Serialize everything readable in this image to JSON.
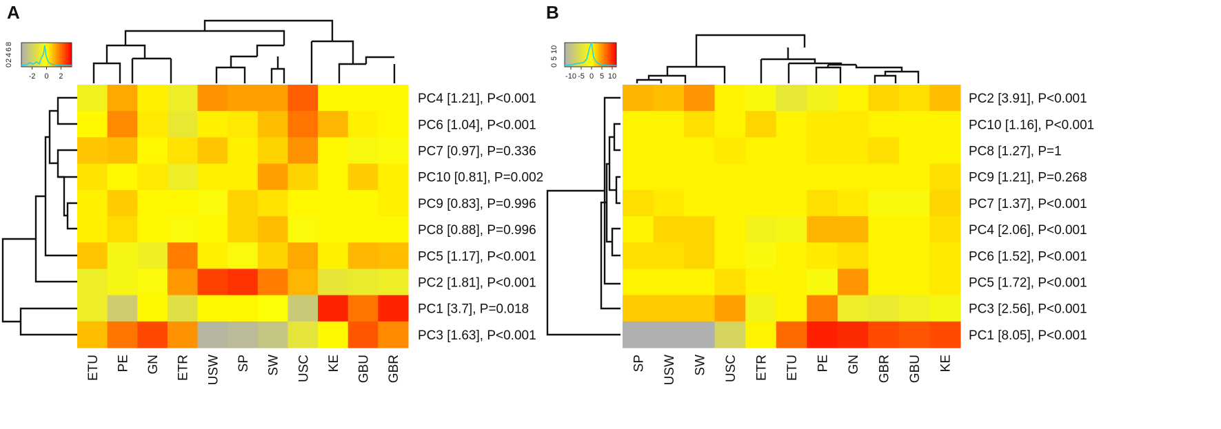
{
  "chart_data": [
    {
      "type": "heatmap",
      "panel": "A",
      "columns": [
        "ETU",
        "PE",
        "GN",
        "ETR",
        "USW",
        "SP",
        "SW",
        "USC",
        "KE",
        "GBU",
        "GBR"
      ],
      "rows": [
        "PC4 [1.21], P<0.001",
        "PC6 [1.04], P<0.001",
        "PC7 [0.97], P=0.336",
        "PC10 [0.81], P=0.002",
        "PC9 [0.83], P=0.996",
        "PC8 [0.88], P=0.996",
        "PC5 [1.17], P<0.001",
        "PC2 [1.81], P<0.001",
        "PC1 [3.7], P=0.018",
        "PC3 [1.63], P<0.001"
      ],
      "values": [
        [
          -0.6,
          1.2,
          0.2,
          -0.8,
          1.5,
          1.3,
          1.3,
          2.2,
          0.1,
          0.1,
          0.1
        ],
        [
          0.1,
          1.6,
          0.3,
          -1.0,
          0.2,
          0.3,
          0.9,
          1.9,
          1.0,
          0.2,
          0.1
        ],
        [
          0.8,
          0.9,
          0.1,
          0.4,
          0.8,
          0.2,
          0.6,
          1.5,
          0.1,
          -0.3,
          -0.2
        ],
        [
          0.4,
          0.1,
          0.3,
          -0.8,
          0.2,
          0.2,
          1.3,
          0.6,
          0.1,
          0.7,
          0.2
        ],
        [
          0.2,
          0.7,
          0.1,
          0.1,
          -0.2,
          0.6,
          0.4,
          0.1,
          0.1,
          0.1,
          0.2
        ],
        [
          0.2,
          0.5,
          0.1,
          -0.2,
          0.1,
          0.6,
          0.9,
          -0.2,
          0.1,
          0.1,
          0.1
        ],
        [
          0.8,
          -0.4,
          -0.7,
          1.8,
          0.2,
          -0.2,
          0.6,
          1.2,
          0.2,
          1.0,
          0.9
        ],
        [
          -0.8,
          -0.4,
          -0.2,
          1.4,
          2.6,
          2.8,
          1.8,
          1.0,
          -1.1,
          -0.9,
          -0.8
        ],
        [
          -0.8,
          -2.2,
          0.1,
          -1.4,
          0.1,
          0.1,
          -0.1,
          -2.4,
          3.0,
          1.9,
          3.0
        ],
        [
          0.9,
          1.9,
          2.5,
          1.5,
          -3.2,
          -3.0,
          -2.6,
          -1.2,
          0.1,
          2.3,
          1.6
        ]
      ],
      "color_key": {
        "min": -3.5,
        "max": 3.5,
        "ticks": [
          -2,
          0,
          2
        ],
        "hist_ticks": [
          "0",
          "2",
          "4",
          "6",
          "8"
        ]
      },
      "row_order_note": "rows top to bottom as displayed",
      "colors": {
        "low": "#b0b0b0",
        "mid": "#ffff00",
        "high": "#ff0000"
      }
    },
    {
      "type": "heatmap",
      "panel": "B",
      "columns": [
        "SP",
        "USW",
        "SW",
        "USC",
        "ETR",
        "ETU",
        "PE",
        "GN",
        "GBR",
        "GBU",
        "KE"
      ],
      "rows": [
        "PC2 [3.91], P<0.001",
        "PC10 [1.16], P<0.001",
        "PC8 [1.27], P=1",
        "PC9 [1.21], P=0.268",
        "PC7 [1.37], P<0.001",
        "PC4 [2.06], P<0.001",
        "PC6 [1.52], P<0.001",
        "PC5 [1.72], P<0.001",
        "PC3 [2.56], P<0.001",
        "PC1 [8.05], P<0.001"
      ],
      "values": [
        [
          3.5,
          3.0,
          5.0,
          0.5,
          -1.0,
          -4.0,
          -2.0,
          0.5,
          2.0,
          1.5,
          3.0
        ],
        [
          0.5,
          0.5,
          1.5,
          0.5,
          2.0,
          0.5,
          1.0,
          1.0,
          0.5,
          0.5,
          0.5
        ],
        [
          0.5,
          0.5,
          0.5,
          1.0,
          0.5,
          0.5,
          1.0,
          1.0,
          1.5,
          0.5,
          0.5
        ],
        [
          0.5,
          0.5,
          0.5,
          0.5,
          0.5,
          0.5,
          0.5,
          0.5,
          0.5,
          0.5,
          1.5
        ],
        [
          1.5,
          1.0,
          0.5,
          0.5,
          0.5,
          0.5,
          1.5,
          1.0,
          -1.0,
          -1.0,
          2.0
        ],
        [
          0.5,
          2.0,
          2.0,
          0.5,
          -2.0,
          -1.5,
          3.5,
          3.5,
          0.5,
          0.5,
          1.5
        ],
        [
          1.5,
          1.5,
          2.0,
          0.5,
          -1.0,
          0.5,
          1.0,
          1.5,
          0.5,
          0.5,
          1.0
        ],
        [
          0.5,
          0.5,
          0.5,
          1.5,
          0.5,
          0.5,
          -1.0,
          5.0,
          0.5,
          0.5,
          1.0
        ],
        [
          2.5,
          2.5,
          2.5,
          4.5,
          -2.0,
          0.5,
          6.0,
          -3.0,
          -3.5,
          -2.5,
          -1.5
        ],
        [
          -13.0,
          -13.0,
          -13.0,
          -7.0,
          0.5,
          7.0,
          10.5,
          10.0,
          8.5,
          8.0,
          8.5
        ]
      ],
      "color_key": {
        "min": -13,
        "max": 12,
        "ticks": [
          -10,
          -5,
          0,
          5,
          10
        ],
        "hist_ticks": [
          "0",
          "5",
          "10"
        ]
      },
      "row_order_note": "rows top to bottom as displayed",
      "colors": {
        "low": "#b0b0b0",
        "mid": "#ffff00",
        "high": "#ff0000"
      }
    }
  ]
}
